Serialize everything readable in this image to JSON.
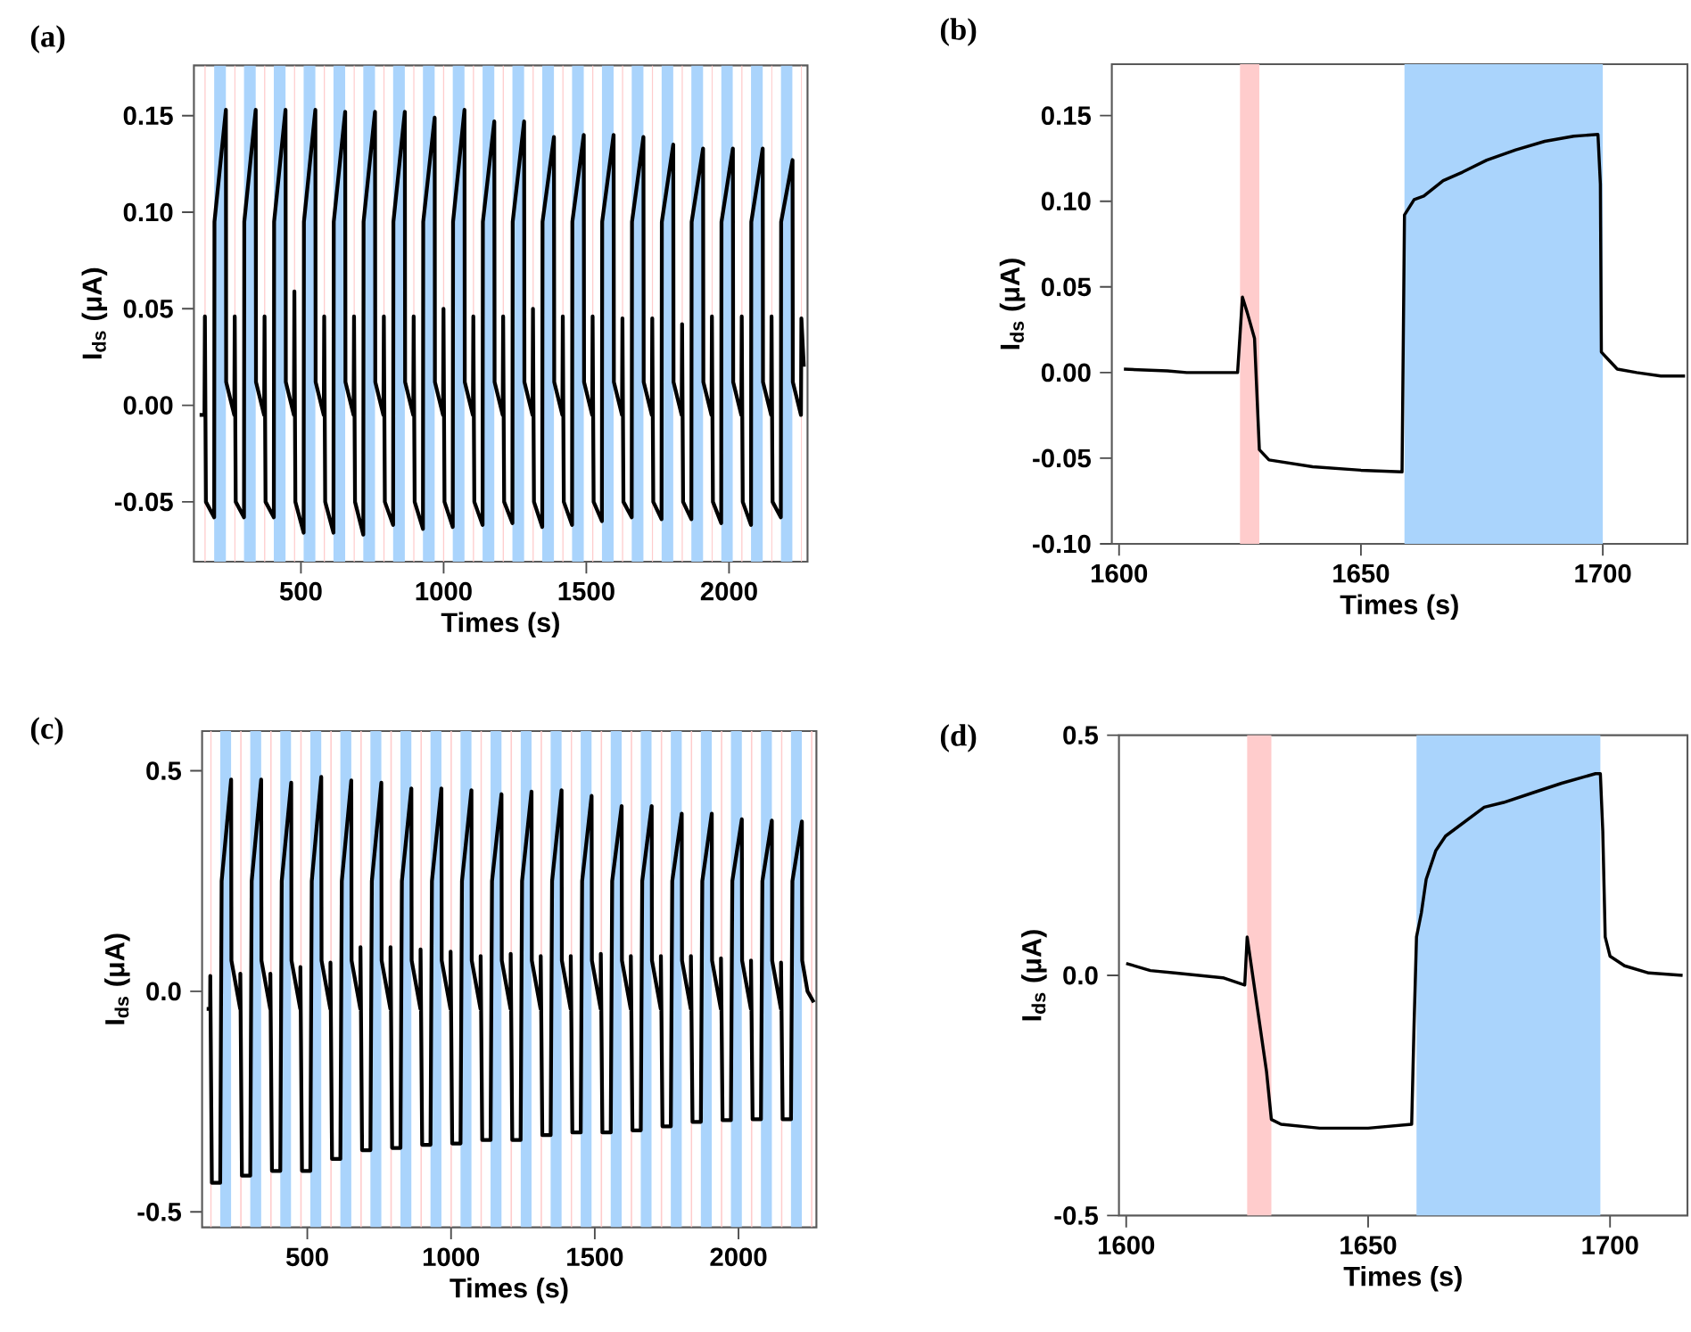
{
  "chart_data": [
    {
      "type": "line",
      "title": "(a)",
      "xlabel": "Times (s)",
      "ylabel": "I$_{ds}$ (μA)",
      "color": "#000000",
      "xlim": [
        125,
        2275
      ],
      "ylim": [
        -0.081,
        0.176
      ],
      "xticks": [
        500,
        1000,
        1500,
        2000
      ],
      "yticks": [
        {
          "value": -0.05,
          "label": "-0.05"
        },
        {
          "value": 0,
          "label": "0.00"
        },
        0.05,
        {
          "value": 0.1,
          "label": "0.10"
        },
        0.15
      ],
      "x": [
        145,
        162,
        163.5,
        167,
        196,
        197,
        237,
        238,
        266.5,
        268,
        271.5,
        300.5,
        301.5,
        341.5,
        342.5,
        371,
        372.5,
        376,
        405,
        406,
        446,
        447,
        475.5,
        477,
        480.5,
        509.5,
        510.5,
        550.5,
        551.5,
        580,
        581.5,
        585,
        614,
        615,
        655,
        656,
        684.5,
        686,
        689.5,
        718.5,
        719.5,
        759.5,
        760.5,
        789,
        790.5,
        794,
        823,
        824,
        864,
        865,
        893.5,
        895,
        898.5,
        927.5,
        928.5,
        968.5,
        969.5,
        998,
        999.5,
        1003,
        1032,
        1033,
        1073,
        1074,
        1102.5,
        1104,
        1107.5,
        1136.5,
        1137.5,
        1177.5,
        1178.5,
        1207,
        1208.5,
        1212,
        1241,
        1242,
        1282,
        1283,
        1311.5,
        1313,
        1316.5,
        1345.5,
        1346.5,
        1386.5,
        1387.5,
        1416,
        1417.5,
        1421,
        1450,
        1451,
        1491,
        1492,
        1520.5,
        1522,
        1525.5,
        1554.5,
        1555.5,
        1595.5,
        1596.5,
        1625,
        1626.5,
        1630,
        1659,
        1660,
        1700,
        1701,
        1729.5,
        1731,
        1734.5,
        1763.5,
        1764.5,
        1804.5,
        1805.5,
        1834,
        1835.5,
        1839,
        1868,
        1869,
        1909,
        1910,
        1938.5,
        1940,
        1943.5,
        1972.5,
        1973.5,
        2013.5,
        2014.5,
        2043,
        2044.5,
        2048,
        2077,
        2078,
        2118,
        2119,
        2147.5,
        2149,
        2152.5,
        2181.5,
        2182.5,
        2222.5,
        2223.5,
        2252,
        2253.5,
        2262
      ],
      "values": [
        -0.005,
        -0.005,
        0.046,
        -0.05,
        -0.058,
        0.095,
        0.153,
        0.012,
        -0.005,
        0.046,
        -0.05,
        -0.058,
        0.095,
        0.153,
        0.012,
        -0.005,
        0.046,
        -0.05,
        -0.058,
        0.095,
        0.153,
        0.012,
        -0.005,
        0.059,
        -0.05,
        -0.066,
        0.095,
        0.153,
        0.012,
        -0.005,
        0.046,
        -0.05,
        -0.066,
        0.095,
        0.152,
        0.012,
        -0.005,
        0.046,
        -0.05,
        -0.067,
        0.095,
        0.152,
        0.012,
        -0.005,
        0.046,
        -0.05,
        -0.062,
        0.095,
        0.152,
        0.012,
        -0.005,
        0.046,
        -0.05,
        -0.064,
        0.095,
        0.149,
        0.012,
        -0.005,
        0.05,
        -0.05,
        -0.063,
        0.095,
        0.153,
        0.012,
        -0.005,
        0.046,
        -0.05,
        -0.062,
        0.095,
        0.147,
        0.012,
        -0.005,
        0.046,
        -0.05,
        -0.061,
        0.095,
        0.147,
        0.012,
        -0.005,
        0.05,
        -0.05,
        -0.063,
        0.095,
        0.139,
        0.012,
        -0.005,
        0.046,
        -0.05,
        -0.062,
        0.095,
        0.14,
        0.012,
        -0.005,
        0.046,
        -0.05,
        -0.06,
        0.095,
        0.14,
        0.012,
        -0.005,
        0.045,
        -0.05,
        -0.058,
        0.095,
        0.139,
        0.012,
        -0.005,
        0.045,
        -0.05,
        -0.059,
        0.095,
        0.135,
        0.012,
        -0.005,
        0.042,
        -0.05,
        -0.059,
        0.095,
        0.133,
        0.012,
        -0.005,
        0.046,
        -0.05,
        -0.061,
        0.095,
        0.133,
        0.012,
        -0.005,
        0.046,
        -0.05,
        -0.062,
        0.095,
        0.133,
        0.012,
        -0.005,
        0.046,
        -0.05,
        -0.058,
        0.095,
        0.127,
        0.012,
        -0.005,
        0.045,
        0.02
      ],
      "bands": [
        {
          "axis": "x",
          "from": 162,
          "to": 166,
          "color": "#ffcccc"
        },
        {
          "axis": "x",
          "from": 196,
          "to": 237,
          "color": "#aad4fc"
        },
        {
          "axis": "x",
          "from": 266.5,
          "to": 270.5,
          "color": "#ffcccc"
        },
        {
          "axis": "x",
          "from": 300.5,
          "to": 341.5,
          "color": "#aad4fc"
        },
        {
          "axis": "x",
          "from": 371,
          "to": 375,
          "color": "#ffcccc"
        },
        {
          "axis": "x",
          "from": 405,
          "to": 446,
          "color": "#aad4fc"
        },
        {
          "axis": "x",
          "from": 475.5,
          "to": 479.5,
          "color": "#ffcccc"
        },
        {
          "axis": "x",
          "from": 509.5,
          "to": 550.5,
          "color": "#aad4fc"
        },
        {
          "axis": "x",
          "from": 580,
          "to": 584,
          "color": "#ffcccc"
        },
        {
          "axis": "x",
          "from": 614,
          "to": 655,
          "color": "#aad4fc"
        },
        {
          "axis": "x",
          "from": 684.5,
          "to": 688.5,
          "color": "#ffcccc"
        },
        {
          "axis": "x",
          "from": 718.5,
          "to": 759.5,
          "color": "#aad4fc"
        },
        {
          "axis": "x",
          "from": 789,
          "to": 793,
          "color": "#ffcccc"
        },
        {
          "axis": "x",
          "from": 823,
          "to": 864,
          "color": "#aad4fc"
        },
        {
          "axis": "x",
          "from": 893.5,
          "to": 897.5,
          "color": "#ffcccc"
        },
        {
          "axis": "x",
          "from": 927.5,
          "to": 968.5,
          "color": "#aad4fc"
        },
        {
          "axis": "x",
          "from": 998,
          "to": 1002,
          "color": "#ffcccc"
        },
        {
          "axis": "x",
          "from": 1032,
          "to": 1073,
          "color": "#aad4fc"
        },
        {
          "axis": "x",
          "from": 1102.5,
          "to": 1106.5,
          "color": "#ffcccc"
        },
        {
          "axis": "x",
          "from": 1136.5,
          "to": 1177.5,
          "color": "#aad4fc"
        },
        {
          "axis": "x",
          "from": 1207,
          "to": 1211,
          "color": "#ffcccc"
        },
        {
          "axis": "x",
          "from": 1241,
          "to": 1282,
          "color": "#aad4fc"
        },
        {
          "axis": "x",
          "from": 1311.5,
          "to": 1315.5,
          "color": "#ffcccc"
        },
        {
          "axis": "x",
          "from": 1345.5,
          "to": 1386.5,
          "color": "#aad4fc"
        },
        {
          "axis": "x",
          "from": 1416,
          "to": 1420,
          "color": "#ffcccc"
        },
        {
          "axis": "x",
          "from": 1450,
          "to": 1491,
          "color": "#aad4fc"
        },
        {
          "axis": "x",
          "from": 1520.5,
          "to": 1524.5,
          "color": "#ffcccc"
        },
        {
          "axis": "x",
          "from": 1554.5,
          "to": 1595.5,
          "color": "#aad4fc"
        },
        {
          "axis": "x",
          "from": 1625,
          "to": 1629,
          "color": "#ffcccc"
        },
        {
          "axis": "x",
          "from": 1659,
          "to": 1700,
          "color": "#aad4fc"
        },
        {
          "axis": "x",
          "from": 1729.5,
          "to": 1733.5,
          "color": "#ffcccc"
        },
        {
          "axis": "x",
          "from": 1763.5,
          "to": 1804.5,
          "color": "#aad4fc"
        },
        {
          "axis": "x",
          "from": 1834,
          "to": 1838,
          "color": "#ffcccc"
        },
        {
          "axis": "x",
          "from": 1868,
          "to": 1909,
          "color": "#aad4fc"
        },
        {
          "axis": "x",
          "from": 1938.5,
          "to": 1942.5,
          "color": "#ffcccc"
        },
        {
          "axis": "x",
          "from": 1972.5,
          "to": 2013.5,
          "color": "#aad4fc"
        },
        {
          "axis": "x",
          "from": 2043,
          "to": 2047,
          "color": "#ffcccc"
        },
        {
          "axis": "x",
          "from": 2077,
          "to": 2118,
          "color": "#aad4fc"
        },
        {
          "axis": "x",
          "from": 2147.5,
          "to": 2151.5,
          "color": "#ffcccc"
        },
        {
          "axis": "x",
          "from": 2181.5,
          "to": 2222.5,
          "color": "#aad4fc"
        },
        {
          "axis": "x",
          "from": 2252,
          "to": 2256,
          "color": "#ffcccc"
        }
      ]
    },
    {
      "type": "line",
      "title": "(b)",
      "xlabel": "Times (s)",
      "ylabel": "I$_{ds}$ (μA)",
      "color": "#000000",
      "xlim": [
        1598.5,
        1717.5
      ],
      "ylim": [
        -0.1,
        0.18
      ],
      "xticks": [
        1600,
        1650,
        1700
      ],
      "yticks": [
        {
          "value": -0.1,
          "label": "-0.10"
        },
        -0.05,
        {
          "value": 0,
          "label": "0.00"
        },
        0.05,
        {
          "value": 0.1,
          "label": "0.10"
        },
        0.15
      ],
      "x": [
        1601,
        1610,
        1614,
        1624.5,
        1625.5,
        1626.5,
        1628,
        1629,
        1631,
        1640,
        1650,
        1658.5,
        1659,
        1661,
        1663,
        1667,
        1671,
        1676,
        1682,
        1688,
        1694,
        1699,
        1699.5,
        1699.7,
        1701,
        1703,
        1707,
        1712,
        1717
      ],
      "values": [
        0.002,
        0.001,
        0,
        0,
        0.044,
        0.035,
        0.02,
        -0.045,
        -0.051,
        -0.055,
        -0.057,
        -0.058,
        0.092,
        0.101,
        0.103,
        0.112,
        0.117,
        0.124,
        0.13,
        0.135,
        0.138,
        0.139,
        0.11,
        0.012,
        0.008,
        0.002,
        0,
        -0.002,
        -0.002
      ],
      "bands": [
        {
          "axis": "x",
          "from": 1625,
          "to": 1629,
          "color": "#ffcccc"
        },
        {
          "axis": "x",
          "from": 1659,
          "to": 1700,
          "color": "#aad4fc"
        }
      ]
    },
    {
      "type": "line",
      "title": "(c)",
      "xlabel": "Times (s)",
      "ylabel": "I$_{ds}$ (μA)",
      "color": "#000000",
      "xlim": [
        134,
        2271
      ],
      "ylim": [
        -0.535,
        0.59
      ],
      "xticks": [
        500,
        1000,
        1500,
        2000
      ],
      "yticks": [
        -0.5,
        {
          "value": 0,
          "label": "0.0"
        },
        0.5
      ],
      "x": [
        150,
        162,
        162.5,
        168,
        197,
        202,
        235,
        236,
        266.5,
        267,
        272.5,
        301.5,
        306.5,
        339.5,
        340.5,
        371,
        371.5,
        377,
        406,
        411,
        444,
        445,
        475.5,
        476,
        481.5,
        510.5,
        515.5,
        548.5,
        549.5,
        580,
        580.5,
        586,
        615,
        620,
        653,
        654,
        684.5,
        685,
        690.5,
        719.5,
        724.5,
        757.5,
        758.5,
        789,
        789.5,
        795,
        824,
        829,
        862,
        863,
        893.5,
        894,
        899.5,
        928.5,
        933.5,
        966.5,
        967.5,
        998,
        998.5,
        1004,
        1033,
        1038,
        1071,
        1072,
        1102.5,
        1103,
        1108.5,
        1137.5,
        1142.5,
        1175.5,
        1176.5,
        1207,
        1207.5,
        1213,
        1242,
        1247,
        1280,
        1281,
        1311.5,
        1312,
        1317.5,
        1346.5,
        1351.5,
        1384.5,
        1385.5,
        1416,
        1416.5,
        1422,
        1451,
        1456,
        1489,
        1490,
        1520.5,
        1521,
        1526.5,
        1555.5,
        1560.5,
        1593.5,
        1594.5,
        1625,
        1625.5,
        1631,
        1660,
        1665,
        1698,
        1699,
        1729.5,
        1730,
        1735.5,
        1764.5,
        1769.5,
        1802.5,
        1803.5,
        1834,
        1834.5,
        1840,
        1869,
        1874,
        1907,
        1908,
        1938.5,
        1939,
        1944.5,
        1973.5,
        1978.5,
        2011.5,
        2012.5,
        2043,
        2043.5,
        2049,
        2078,
        2083,
        2116,
        2117,
        2147.5,
        2148,
        2153.5,
        2182.5,
        2187.5,
        2220.5,
        2221.5,
        2240,
        2262
      ],
      "values": [
        -0.04,
        -0.04,
        0.035,
        -0.434,
        -0.434,
        0.25,
        0.48,
        0.07,
        -0.04,
        0.04,
        -0.418,
        -0.418,
        0.25,
        0.48,
        0.07,
        -0.04,
        0.04,
        -0.407,
        -0.407,
        0.25,
        0.473,
        0.07,
        -0.04,
        0.055,
        -0.407,
        -0.407,
        0.25,
        0.486,
        0.07,
        -0.04,
        0.065,
        -0.38,
        -0.38,
        0.25,
        0.478,
        0.07,
        -0.04,
        0.1,
        -0.36,
        -0.36,
        0.25,
        0.473,
        0.07,
        -0.04,
        0.1,
        -0.355,
        -0.355,
        0.25,
        0.46,
        0.07,
        -0.04,
        0.095,
        -0.348,
        -0.348,
        0.25,
        0.46,
        0.07,
        -0.04,
        0.09,
        -0.345,
        -0.345,
        0.25,
        0.456,
        0.07,
        -0.04,
        0.08,
        -0.337,
        -0.337,
        0.25,
        0.447,
        0.07,
        -0.04,
        0.085,
        -0.337,
        -0.337,
        0.25,
        0.453,
        0.07,
        -0.04,
        0.08,
        -0.326,
        -0.326,
        0.25,
        0.456,
        0.07,
        -0.04,
        0.08,
        -0.32,
        -0.32,
        0.25,
        0.443,
        0.07,
        -0.04,
        0.085,
        -0.32,
        -0.32,
        0.25,
        0.42,
        0.07,
        -0.04,
        0.08,
        -0.315,
        -0.315,
        0.25,
        0.42,
        0.07,
        -0.04,
        0.08,
        -0.306,
        -0.306,
        0.25,
        0.403,
        0.07,
        -0.04,
        0.08,
        -0.296,
        -0.296,
        0.25,
        0.403,
        0.07,
        -0.04,
        0.075,
        -0.292,
        -0.292,
        0.25,
        0.39,
        0.07,
        -0.04,
        0.07,
        -0.29,
        -0.29,
        0.25,
        0.387,
        0.07,
        -0.04,
        0.065,
        -0.29,
        -0.29,
        0.25,
        0.385,
        0.07,
        0,
        -0.025
      ],
      "bands": [
        {
          "axis": "x",
          "from": 162,
          "to": 167,
          "color": "#ffcccc"
        },
        {
          "axis": "x",
          "from": 197,
          "to": 235,
          "color": "#aad4fc"
        },
        {
          "axis": "x",
          "from": 266.5,
          "to": 271.5,
          "color": "#ffcccc"
        },
        {
          "axis": "x",
          "from": 301.5,
          "to": 339.5,
          "color": "#aad4fc"
        },
        {
          "axis": "x",
          "from": 371,
          "to": 376,
          "color": "#ffcccc"
        },
        {
          "axis": "x",
          "from": 406,
          "to": 444,
          "color": "#aad4fc"
        },
        {
          "axis": "x",
          "from": 475.5,
          "to": 480.5,
          "color": "#ffcccc"
        },
        {
          "axis": "x",
          "from": 510.5,
          "to": 548.5,
          "color": "#aad4fc"
        },
        {
          "axis": "x",
          "from": 580,
          "to": 585,
          "color": "#ffcccc"
        },
        {
          "axis": "x",
          "from": 615,
          "to": 653,
          "color": "#aad4fc"
        },
        {
          "axis": "x",
          "from": 684.5,
          "to": 689.5,
          "color": "#ffcccc"
        },
        {
          "axis": "x",
          "from": 719.5,
          "to": 757.5,
          "color": "#aad4fc"
        },
        {
          "axis": "x",
          "from": 789,
          "to": 794,
          "color": "#ffcccc"
        },
        {
          "axis": "x",
          "from": 824,
          "to": 862,
          "color": "#aad4fc"
        },
        {
          "axis": "x",
          "from": 893.5,
          "to": 898.5,
          "color": "#ffcccc"
        },
        {
          "axis": "x",
          "from": 928.5,
          "to": 966.5,
          "color": "#aad4fc"
        },
        {
          "axis": "x",
          "from": 998,
          "to": 1003,
          "color": "#ffcccc"
        },
        {
          "axis": "x",
          "from": 1033,
          "to": 1071,
          "color": "#aad4fc"
        },
        {
          "axis": "x",
          "from": 1102.5,
          "to": 1107.5,
          "color": "#ffcccc"
        },
        {
          "axis": "x",
          "from": 1137.5,
          "to": 1175.5,
          "color": "#aad4fc"
        },
        {
          "axis": "x",
          "from": 1207,
          "to": 1212,
          "color": "#ffcccc"
        },
        {
          "axis": "x",
          "from": 1242,
          "to": 1280,
          "color": "#aad4fc"
        },
        {
          "axis": "x",
          "from": 1311.5,
          "to": 1316.5,
          "color": "#ffcccc"
        },
        {
          "axis": "x",
          "from": 1346.5,
          "to": 1384.5,
          "color": "#aad4fc"
        },
        {
          "axis": "x",
          "from": 1416,
          "to": 1421,
          "color": "#ffcccc"
        },
        {
          "axis": "x",
          "from": 1451,
          "to": 1489,
          "color": "#aad4fc"
        },
        {
          "axis": "x",
          "from": 1520.5,
          "to": 1525.5,
          "color": "#ffcccc"
        },
        {
          "axis": "x",
          "from": 1555.5,
          "to": 1593.5,
          "color": "#aad4fc"
        },
        {
          "axis": "x",
          "from": 1625,
          "to": 1630,
          "color": "#ffcccc"
        },
        {
          "axis": "x",
          "from": 1660,
          "to": 1698,
          "color": "#aad4fc"
        },
        {
          "axis": "x",
          "from": 1729.5,
          "to": 1734.5,
          "color": "#ffcccc"
        },
        {
          "axis": "x",
          "from": 1764.5,
          "to": 1802.5,
          "color": "#aad4fc"
        },
        {
          "axis": "x",
          "from": 1834,
          "to": 1839,
          "color": "#ffcccc"
        },
        {
          "axis": "x",
          "from": 1869,
          "to": 1907,
          "color": "#aad4fc"
        },
        {
          "axis": "x",
          "from": 1938.5,
          "to": 1943.5,
          "color": "#ffcccc"
        },
        {
          "axis": "x",
          "from": 1973.5,
          "to": 2011.5,
          "color": "#aad4fc"
        },
        {
          "axis": "x",
          "from": 2043,
          "to": 2048,
          "color": "#ffcccc"
        },
        {
          "axis": "x",
          "from": 2078,
          "to": 2116,
          "color": "#aad4fc"
        },
        {
          "axis": "x",
          "from": 2147.5,
          "to": 2152.5,
          "color": "#ffcccc"
        },
        {
          "axis": "x",
          "from": 2182.5,
          "to": 2220.5,
          "color": "#aad4fc"
        },
        {
          "axis": "x",
          "from": 2252,
          "to": 2257,
          "color": "#ffcccc"
        }
      ]
    },
    {
      "type": "line",
      "title": "(d)",
      "xlabel": "Times (s)",
      "ylabel": "I$_{ds}$ (μA)",
      "color": "#000000",
      "xlim": [
        1598.5,
        1716
      ],
      "ylim": [
        -0.5,
        0.5
      ],
      "xticks": [
        1600,
        1650,
        1700
      ],
      "yticks": [
        -0.5,
        {
          "value": 0,
          "label": "0.0"
        },
        0.5
      ],
      "x": [
        1600,
        1605,
        1610,
        1620,
        1624.5,
        1625,
        1629,
        1630,
        1632,
        1640,
        1650,
        1659,
        1659.5,
        1660,
        1661,
        1662,
        1664,
        1666,
        1670,
        1674,
        1678,
        1684,
        1690,
        1697,
        1698,
        1698.5,
        1699,
        1700,
        1703,
        1708,
        1715
      ],
      "values": [
        0.025,
        0.01,
        0.005,
        -0.005,
        -0.02,
        0.08,
        -0.2,
        -0.3,
        -0.31,
        -0.318,
        -0.318,
        -0.31,
        -0.1,
        0.08,
        0.13,
        0.2,
        0.26,
        0.29,
        0.32,
        0.35,
        0.36,
        0.38,
        0.4,
        0.42,
        0.42,
        0.3,
        0.08,
        0.04,
        0.02,
        0.005,
        0
      ],
      "bands": [
        {
          "axis": "x",
          "from": 1625,
          "to": 1630,
          "color": "#ffcccc"
        },
        {
          "axis": "x",
          "from": 1660,
          "to": 1698,
          "color": "#aad4fc"
        }
      ]
    }
  ]
}
